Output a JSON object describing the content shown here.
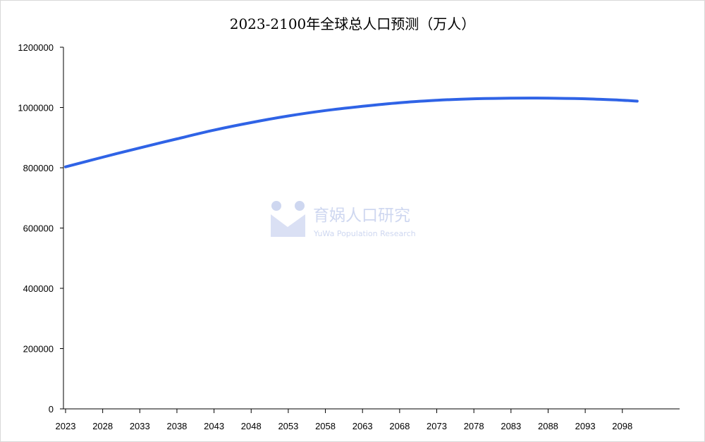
{
  "chart_data": {
    "type": "line",
    "title": "2023-2100年全球总人口预测（万人）",
    "xlabel": "",
    "ylabel": "",
    "ylim": [
      0,
      1200000
    ],
    "yticks": [
      "0",
      "200000",
      "400000",
      "600000",
      "800000",
      "1000000",
      "1200000"
    ],
    "xticks": [
      "2023",
      "2028",
      "2033",
      "2038",
      "2043",
      "2048",
      "2053",
      "2058",
      "2063",
      "2068",
      "2073",
      "2078",
      "2083",
      "2088",
      "2093",
      "2098"
    ],
    "grid": false,
    "series": [
      {
        "color": "#2f63e6",
        "x": [
          2023,
          2028,
          2033,
          2038,
          2043,
          2048,
          2053,
          2058,
          2063,
          2068,
          2073,
          2078,
          2083,
          2088,
          2093,
          2098,
          2100
        ],
        "values": [
          803000,
          835000,
          866000,
          896000,
          925000,
          950000,
          972000,
          990000,
          1004000,
          1016000,
          1024000,
          1029000,
          1031000,
          1031000,
          1029000,
          1024000,
          1021000
        ]
      }
    ]
  },
  "watermark": {
    "name": "育娲人口研究",
    "subtitle": "YuWa Population Research"
  }
}
